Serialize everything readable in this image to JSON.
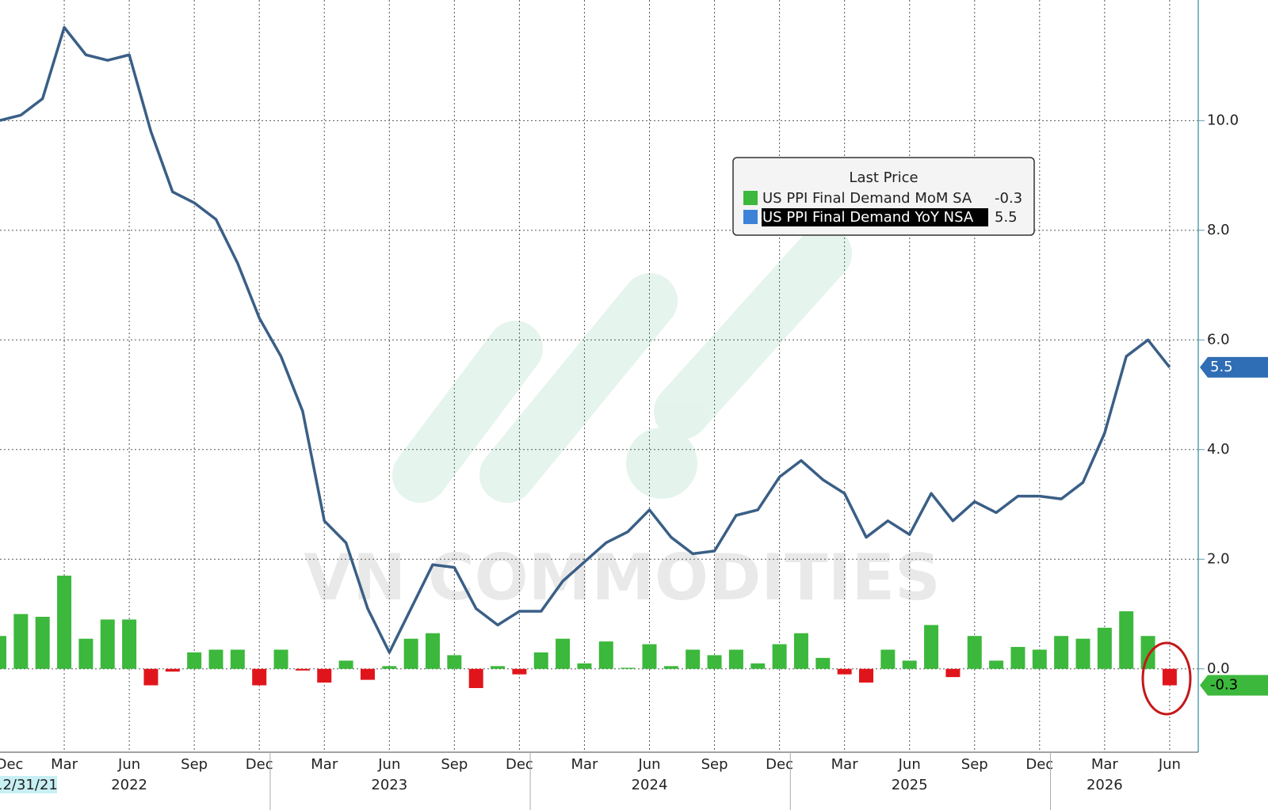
{
  "chart_data": {
    "type": "bar-line",
    "categories": [
      "Dec",
      null,
      null,
      "Mar",
      null,
      null,
      "Jun",
      null,
      null,
      "Sep",
      null,
      null,
      "Dec",
      null,
      null,
      "Mar",
      null,
      null,
      "Jun",
      null,
      null,
      "Sep",
      null,
      null,
      "Dec",
      null,
      null,
      "Mar",
      null,
      null,
      "Jun",
      null,
      null,
      "Sep",
      null,
      null,
      "Dec",
      null,
      null,
      "Mar",
      null,
      null,
      "Jun",
      null,
      null,
      "Sep",
      null,
      null,
      "Dec",
      null,
      null,
      "Mar",
      null,
      null,
      "Jun"
    ],
    "years": [
      "12/31/21",
      null,
      null,
      null,
      null,
      null,
      "2022",
      null,
      null,
      null,
      null,
      null,
      null,
      null,
      null,
      null,
      null,
      null,
      "2023",
      null,
      null,
      null,
      null,
      null,
      null,
      null,
      null,
      null,
      null,
      null,
      "2024",
      null,
      null,
      null,
      null,
      null,
      null,
      null,
      null,
      null,
      null,
      null,
      "2025",
      null,
      null,
      null,
      null,
      null,
      null,
      null,
      null,
      "2026",
      null,
      null,
      null
    ],
    "series": [
      {
        "name": "US PPI Final Demand MoM SA",
        "type": "bar",
        "color": "#3cb83c",
        "negative_color": "#e0151b",
        "values": [
          0.6,
          1.0,
          0.95,
          1.7,
          0.55,
          0.9,
          0.9,
          -0.3,
          -0.05,
          0.3,
          0.35,
          0.35,
          -0.3,
          0.35,
          -0.03,
          -0.25,
          0.15,
          -0.2,
          0.05,
          0.55,
          0.65,
          0.25,
          -0.35,
          0.05,
          -0.1,
          0.3,
          0.55,
          0.1,
          0.5,
          0.02,
          0.45,
          0.05,
          0.35,
          0.25,
          0.35,
          0.1,
          0.45,
          0.65,
          0.2,
          -0.1,
          -0.25,
          0.35,
          0.15,
          0.8,
          -0.15,
          0.6,
          0.15,
          0.4,
          0.35,
          0.6,
          0.55,
          0.75,
          1.05,
          0.6,
          -0.3
        ]
      },
      {
        "name": "US PPI Final Demand YoY NSA",
        "type": "line",
        "color": "#3a5f86",
        "values": [
          10.0,
          10.1,
          10.4,
          11.7,
          11.2,
          11.1,
          11.2,
          9.8,
          8.7,
          8.5,
          8.2,
          7.4,
          6.4,
          5.7,
          4.7,
          2.7,
          2.3,
          1.1,
          0.3,
          1.1,
          1.9,
          1.85,
          1.1,
          0.8,
          1.05,
          1.05,
          1.6,
          1.95,
          2.3,
          2.5,
          2.9,
          2.4,
          2.1,
          2.15,
          2.8,
          2.9,
          3.5,
          3.8,
          3.45,
          3.2,
          2.4,
          2.7,
          2.45,
          3.2,
          2.7,
          3.05,
          2.85,
          3.15,
          3.15,
          3.1,
          3.4,
          4.3,
          5.7,
          6.0,
          5.5
        ]
      }
    ],
    "ylim": [
      -1.52,
      12.2
    ],
    "yticks": [
      {
        "value": 0,
        "label": "0.0"
      },
      {
        "value": 2,
        "label": "2.0"
      },
      {
        "value": 4,
        "label": "4.0"
      },
      {
        "value": 6,
        "label": "6.0"
      },
      {
        "value": 8,
        "label": "8.0"
      },
      {
        "value": 10,
        "label": "10.0"
      }
    ],
    "grid": true,
    "legend_title": "Last Price",
    "watermark": "VN COMMODITIES"
  }
}
